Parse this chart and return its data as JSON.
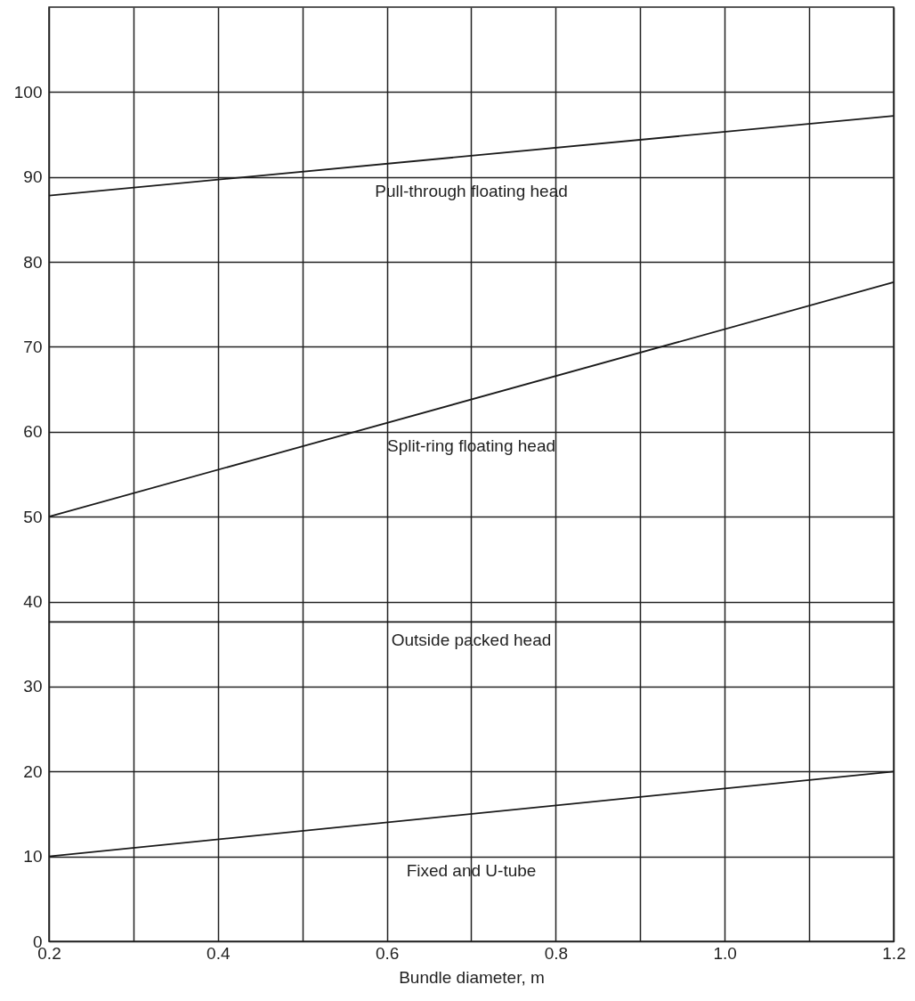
{
  "chart_data": {
    "type": "line",
    "xlabel": "Bundle diameter, m",
    "x": [
      0.2,
      1.2
    ],
    "xlim": [
      0.2,
      1.2
    ],
    "xticks": [
      0.2,
      {
        "value": 0.3,
        "label": null
      },
      0.4,
      {
        "value": 0.5,
        "label": null
      },
      0.6,
      {
        "value": 0.7,
        "label": null
      },
      0.8,
      {
        "value": 0.9,
        "label": null
      },
      {
        "value": 1,
        "label": "1.0"
      },
      {
        "value": 1.1,
        "label": null
      },
      1.2
    ],
    "ylim": [
      0,
      110
    ],
    "yticks": [
      0,
      10,
      20,
      30,
      40,
      50,
      60,
      70,
      80,
      90,
      100
    ],
    "grid": true,
    "legend": false,
    "marker": "none",
    "line_style": "solid",
    "series": [
      {
        "name": "Pull-through floating head",
        "color": "#1a1a1a",
        "values": [
          87.8,
          97.2
        ]
      },
      {
        "name": "Split-ring floating head",
        "color": "#1a1a1a",
        "values": [
          50,
          77.6
        ]
      },
      {
        "name": "Outside packed head",
        "color": "#1a1a1a",
        "values": [
          37.6,
          37.6
        ]
      },
      {
        "name": "Fixed and U-tube",
        "color": "#1a1a1a",
        "values": [
          10,
          20
        ]
      }
    ]
  }
}
